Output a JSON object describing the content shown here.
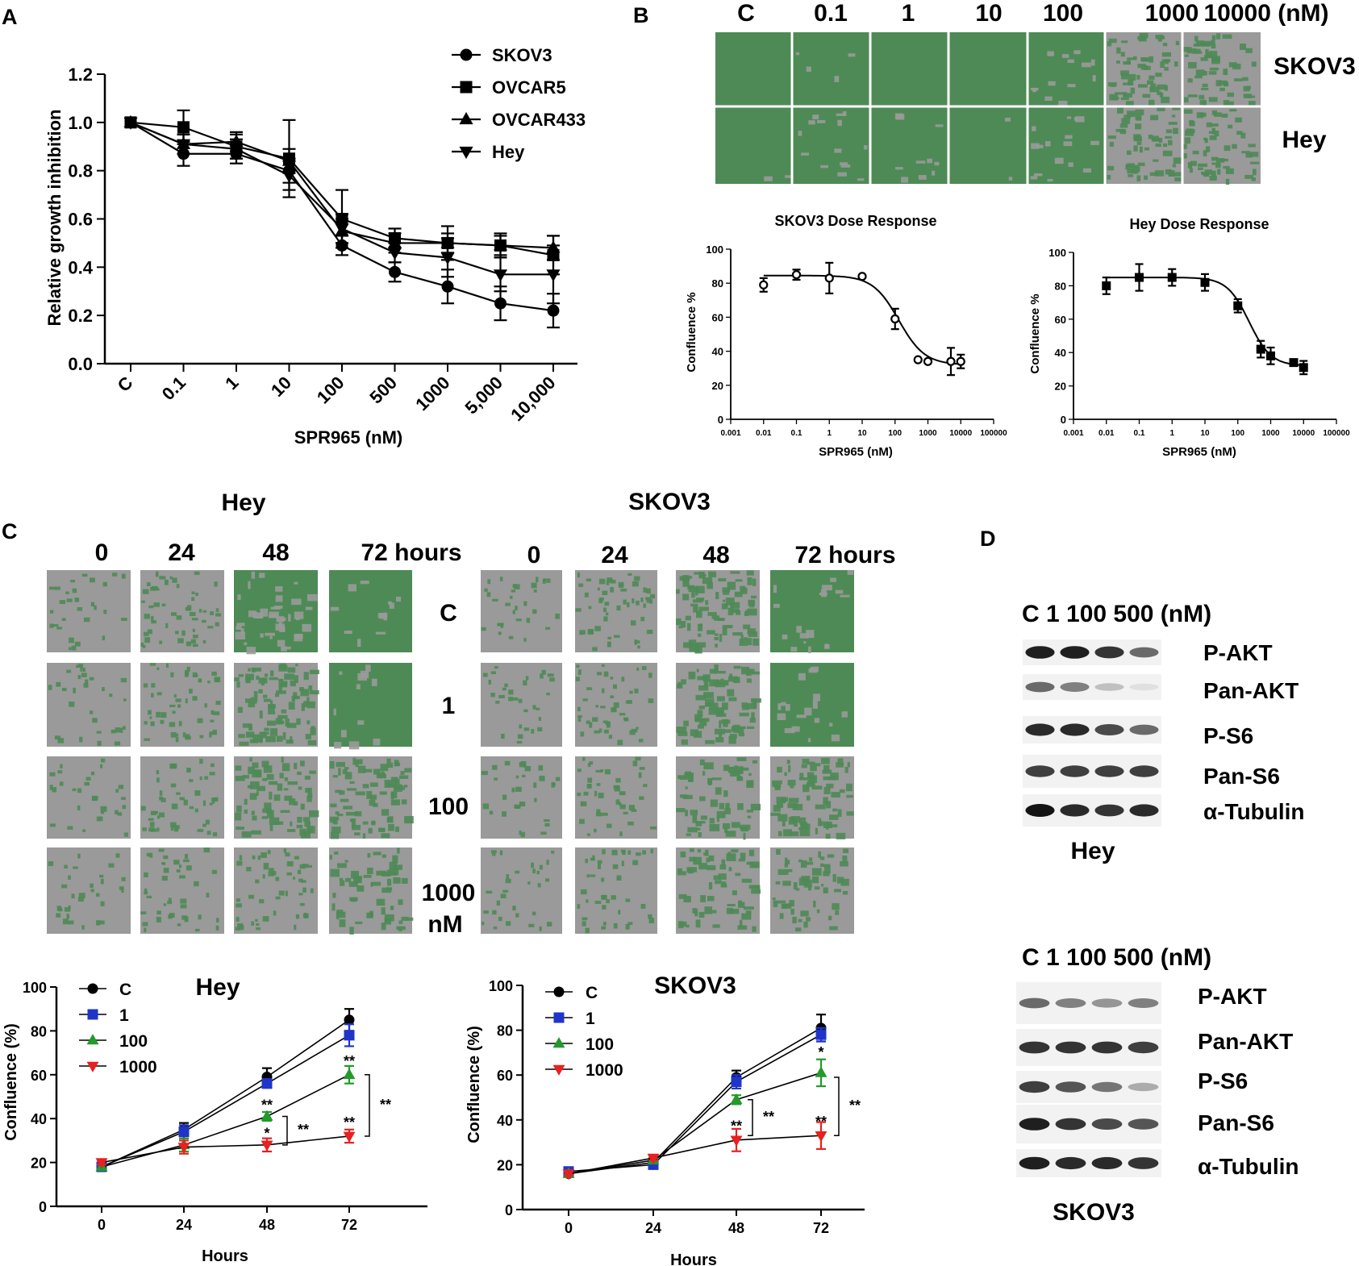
{
  "colors": {
    "cell_green": "#4e8a55",
    "cell_gray": "#9a9a9a",
    "blue": "#1f35c9",
    "green": "#239a2b",
    "red": "#e82020",
    "black": "#000000"
  },
  "panel_letters": {
    "a": "A",
    "b": "B",
    "c": "C",
    "d": "D"
  },
  "chart_data": [
    {
      "id": "A",
      "type": "line",
      "categories": [
        "C",
        "0.1",
        "1",
        "10",
        "100",
        "500",
        "1000",
        "5,000",
        "10,000"
      ],
      "xlabel": "SPR965 (nM)",
      "ylabel": "Relative growth inhibition",
      "ylim": [
        0,
        1.2
      ],
      "yticks": [
        "0.0",
        "0.2",
        "0.4",
        "0.6",
        "0.8",
        "1.0",
        "1.2"
      ],
      "legend_position": "top-right",
      "series": [
        {
          "name": "SKOV3",
          "marker": "circle",
          "values": [
            1.0,
            0.87,
            0.87,
            0.8,
            0.49,
            0.38,
            0.32,
            0.25,
            0.22
          ],
          "errors": [
            0,
            0.05,
            0.04,
            0.05,
            0.04,
            0.04,
            0.07,
            0.07,
            0.07
          ]
        },
        {
          "name": "OVCAR5",
          "marker": "square",
          "values": [
            1.0,
            0.98,
            0.9,
            0.85,
            0.6,
            0.52,
            0.5,
            0.49,
            0.45
          ],
          "errors": [
            0,
            0.07,
            0.05,
            0.16,
            0.12,
            0.04,
            0.07,
            0.05,
            0.08
          ]
        },
        {
          "name": "OVCAR433",
          "marker": "triangle-up",
          "values": [
            1.0,
            0.91,
            0.92,
            0.84,
            0.55,
            0.5,
            0.5,
            0.49,
            0.48
          ],
          "errors": [
            0,
            0.04,
            0.04,
            0.05,
            0.05,
            0.04,
            0.04,
            0.04,
            0.05
          ]
        },
        {
          "name": "Hey",
          "marker": "triangle-down",
          "values": [
            1.0,
            0.91,
            0.89,
            0.78,
            0.56,
            0.46,
            0.44,
            0.37,
            0.37
          ],
          "errors": [
            0,
            0.04,
            0.04,
            0.06,
            0.06,
            0.04,
            0.08,
            0.07,
            0.12
          ]
        }
      ]
    },
    {
      "id": "B-SKOV3",
      "type": "scatter",
      "title": "SKOV3 Dose Response",
      "xlabel": "SPR965 (nM)",
      "ylabel": "Confluence %",
      "xscale": "log",
      "xlim": [
        0.001,
        100000
      ],
      "ylim": [
        0,
        100
      ],
      "xticks": [
        "0.001",
        "0.01",
        "0.1",
        "1",
        "10",
        "100",
        "1000",
        "10000",
        "100000"
      ],
      "yticks": [
        "0",
        "20",
        "40",
        "60",
        "80",
        "100"
      ],
      "marker": "open-circle",
      "x": [
        0.01,
        0.1,
        1,
        10,
        100,
        500,
        1000,
        5000,
        10000
      ],
      "y": [
        79,
        85,
        83,
        84,
        59,
        35,
        34,
        34,
        34
      ],
      "errors": [
        4,
        3,
        9,
        0,
        6,
        0,
        0,
        8,
        4
      ],
      "fit": {
        "top": 84.5,
        "bottom": 32,
        "ic50": 130,
        "hill": 1.1
      }
    },
    {
      "id": "B-Hey",
      "type": "scatter",
      "title": "Hey Dose Response",
      "xlabel": "SPR965 (nM)",
      "ylabel": "Confluence %",
      "xscale": "log",
      "xlim": [
        0.001,
        100000
      ],
      "ylim": [
        0,
        100
      ],
      "xticks": [
        "0.001",
        "0.01",
        "0.1",
        "1",
        "10",
        "100",
        "1000",
        "10000",
        "100000"
      ],
      "yticks": [
        "0",
        "20",
        "40",
        "60",
        "80",
        "100"
      ],
      "marker": "filled-square",
      "x": [
        0.01,
        0.1,
        1,
        10,
        100,
        500,
        1000,
        5000,
        10000
      ],
      "y": [
        80,
        85,
        85,
        82,
        68,
        42,
        38,
        34,
        31
      ],
      "errors": [
        5,
        8,
        5,
        5,
        4,
        5,
        5,
        0,
        4
      ],
      "fit": {
        "top": 85,
        "bottom": 32,
        "ic50": 220,
        "hill": 1.3
      }
    },
    {
      "id": "C-Hey",
      "type": "line",
      "title": "Hey",
      "x": [
        0,
        24,
        48,
        72
      ],
      "xlabel": "Hours",
      "ylabel": "Confluence (%)",
      "ylim": [
        0,
        100
      ],
      "yticks": [
        "0",
        "20",
        "40",
        "60",
        "80",
        "100"
      ],
      "xticks": [
        "0",
        "24",
        "48",
        "72"
      ],
      "legend_position": "top-left",
      "series": [
        {
          "name": "C",
          "color": "#000000",
          "marker": "circle",
          "values": [
            18,
            35,
            59,
            85
          ],
          "errors": [
            1,
            3,
            4,
            5
          ]
        },
        {
          "name": "1",
          "color": "#1f35c9",
          "marker": "square",
          "values": [
            18,
            34,
            56,
            78
          ],
          "errors": [
            1,
            3,
            2,
            5
          ]
        },
        {
          "name": "100",
          "color": "#239a2b",
          "marker": "triangle-up",
          "values": [
            18,
            28,
            41,
            60
          ],
          "errors": [
            1,
            3,
            2,
            4
          ]
        },
        {
          "name": "1000",
          "color": "#e82020",
          "marker": "triangle-down",
          "values": [
            20,
            27,
            28,
            32
          ],
          "errors": [
            1,
            3,
            3,
            3
          ]
        }
      ],
      "annotations": [
        "**",
        "**",
        "*",
        "**",
        "**",
        "**"
      ]
    },
    {
      "id": "C-SKOV3",
      "type": "line",
      "title": "SKOV3",
      "x": [
        0,
        24,
        48,
        72
      ],
      "xlabel": "Hours",
      "ylabel": "Confluence (%)",
      "ylim": [
        0,
        100
      ],
      "yticks": [
        "0",
        "20",
        "40",
        "60",
        "80",
        "100"
      ],
      "xticks": [
        "0",
        "24",
        "48",
        "72"
      ],
      "legend_position": "top-left",
      "series": [
        {
          "name": "C",
          "color": "#000000",
          "marker": "circle",
          "values": [
            16,
            21,
            59,
            81
          ],
          "errors": [
            1,
            1,
            3,
            6
          ]
        },
        {
          "name": "1",
          "color": "#1f35c9",
          "marker": "square",
          "values": [
            17,
            20,
            57,
            78
          ],
          "errors": [
            1,
            1,
            3,
            3
          ]
        },
        {
          "name": "100",
          "color": "#239a2b",
          "marker": "triangle-up",
          "values": [
            16,
            22,
            49,
            61
          ],
          "errors": [
            1,
            1,
            2,
            6
          ]
        },
        {
          "name": "1000",
          "color": "#e82020",
          "marker": "triangle-down",
          "values": [
            16,
            23,
            31,
            33
          ],
          "errors": [
            1,
            1,
            5,
            6
          ]
        }
      ],
      "annotations": [
        "*",
        "**",
        "**",
        "**",
        "**"
      ]
    }
  ],
  "panel_b_images": {
    "columns": [
      "C",
      "0.1",
      "1",
      "10",
      "100",
      "1000",
      "10000 (nM)"
    ],
    "rows": [
      "SKOV3",
      "Hey"
    ],
    "green_levels": [
      [
        1,
        0.97,
        0.97,
        0.97,
        0.75,
        0.35,
        0.35
      ],
      [
        0.95,
        0.8,
        0.8,
        0.95,
        0.75,
        0.3,
        0.3
      ]
    ]
  },
  "panel_c_images": {
    "hey_title": "Hey",
    "skov3_title": "SKOV3",
    "hey_times": [
      "0",
      "24",
      "48",
      "72 hours"
    ],
    "skov3_times": [
      "0",
      "24",
      "48",
      "72 hours"
    ],
    "doses": [
      "C",
      "1",
      "100",
      "1000"
    ],
    "dose_unit": "nM",
    "hey_green": [
      [
        0.08,
        0.3,
        0.7,
        0.95
      ],
      [
        0.1,
        0.3,
        0.6,
        0.95
      ],
      [
        0.08,
        0.25,
        0.45,
        0.55
      ],
      [
        0.1,
        0.2,
        0.3,
        0.35
      ]
    ],
    "skov3_green": [
      [
        0.1,
        0.3,
        0.6,
        0.9
      ],
      [
        0.1,
        0.25,
        0.55,
        0.9
      ],
      [
        0.1,
        0.2,
        0.4,
        0.55
      ],
      [
        0.1,
        0.2,
        0.4,
        0.35
      ]
    ]
  },
  "panel_d": {
    "blots": [
      {
        "header": "C 1 100 500 (nM)",
        "cell_line": "Hey",
        "proteins": [
          "P-AKT",
          "Pan-AKT",
          "P-S6",
          "Pan-S6",
          "α-Tubulin"
        ],
        "intensity": [
          [
            0.95,
            0.95,
            0.85,
            0.6
          ],
          [
            0.6,
            0.5,
            0.2,
            0.05
          ],
          [
            0.9,
            0.9,
            0.75,
            0.6
          ],
          [
            0.8,
            0.8,
            0.8,
            0.8
          ],
          [
            1,
            0.9,
            0.85,
            0.9
          ]
        ]
      },
      {
        "header": "C 1 100 500 (nM)",
        "cell_line": "SKOV3",
        "proteins": [
          "P-AKT",
          "Pan-AKT",
          "P-S6",
          "Pan-S6",
          "α-Tubulin"
        ],
        "intensity": [
          [
            0.6,
            0.5,
            0.4,
            0.5
          ],
          [
            0.85,
            0.85,
            0.85,
            0.8
          ],
          [
            0.8,
            0.7,
            0.55,
            0.3
          ],
          [
            0.95,
            0.85,
            0.75,
            0.7
          ],
          [
            0.95,
            0.9,
            0.9,
            0.85
          ]
        ]
      }
    ]
  }
}
